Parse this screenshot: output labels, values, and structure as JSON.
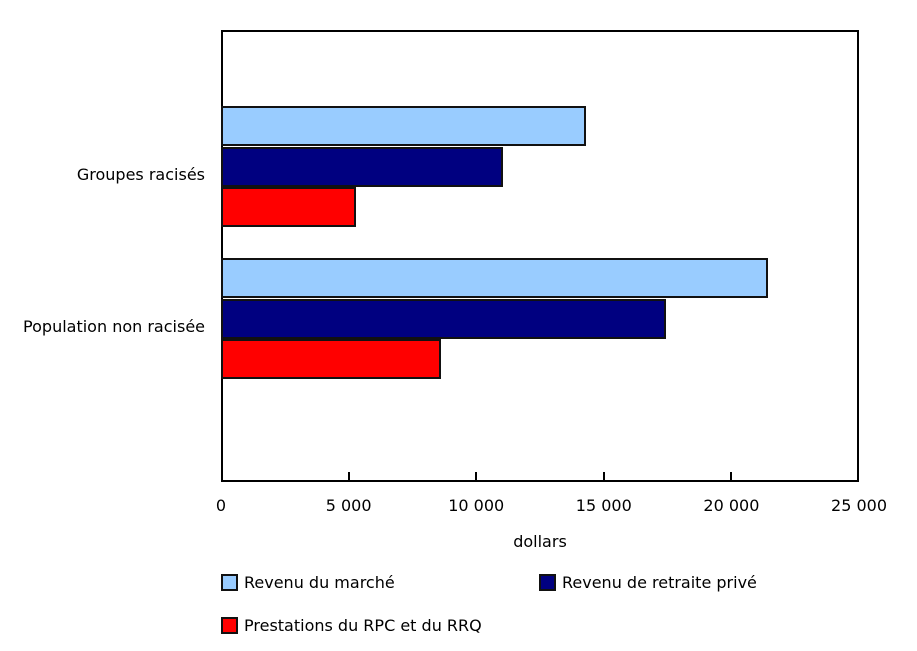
{
  "chart_data": {
    "type": "bar",
    "orientation": "horizontal",
    "title": "",
    "xlabel": "dollars",
    "ylabel": "",
    "xlim": [
      0,
      25000
    ],
    "xticks": [
      "0",
      "5 000",
      "10 000",
      "15 000",
      "20 000",
      "25 000"
    ],
    "grid": false,
    "legend_position": "bottom",
    "categories": [
      "Groupes racisés",
      "Population non racisée"
    ],
    "series": [
      {
        "name": "Revenu du marché",
        "color": "#99ccff",
        "values": [
          14300,
          21430
        ]
      },
      {
        "name": "Revenu de retraite privé",
        "color": "#000080",
        "values": [
          11050,
          17440
        ]
      },
      {
        "name": "Prestations du RPC et du RRQ",
        "color": "#ff0000",
        "values": [
          5290,
          8620
        ]
      }
    ]
  }
}
